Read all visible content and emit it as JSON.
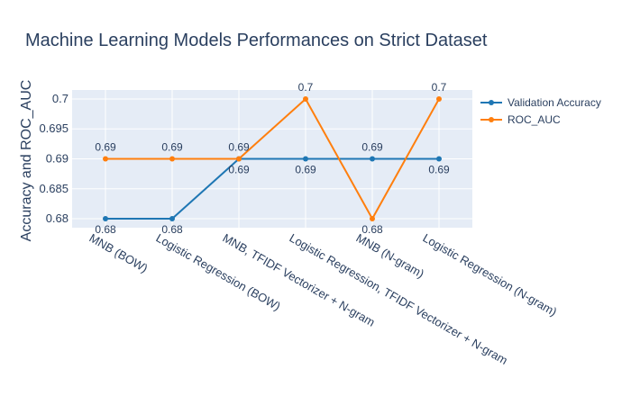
{
  "chart_data": {
    "type": "line",
    "title": "Machine Learning Models Performances on Strict Dataset",
    "xlabel": "",
    "ylabel": "Accuracy and ROC_AUC",
    "ylim": [
      0.6785,
      0.7015
    ],
    "yticks": [
      0.68,
      0.685,
      0.69,
      0.695,
      0.7
    ],
    "ytick_labels": [
      "0.68",
      "0.685",
      "0.69",
      "0.695",
      "0.7"
    ],
    "categories": [
      "MNB (BOW)",
      "Logistic Regression (BOW)",
      "MNB, TFIDF Vectorizer + N-gram",
      "Logistic Regression, TFIDF Vectorizer + N-gram",
      "MNB (N-gram)",
      "Logistic Regression (N-gram)"
    ],
    "series": [
      {
        "name": "Validation Accuracy",
        "color": "#1f77b4",
        "values": [
          0.68,
          0.68,
          0.69,
          0.69,
          0.69,
          0.69
        ],
        "labels": [
          "0.68",
          "0.68",
          "0.69",
          "0.69",
          "0.69",
          "0.69"
        ]
      },
      {
        "name": "ROC_AUC",
        "color": "#ff7f0e",
        "values": [
          0.69,
          0.69,
          0.69,
          0.7,
          0.68,
          0.7
        ],
        "labels": [
          "0.69",
          "0.69",
          "0.69",
          "0.7",
          "0.68",
          "0.7"
        ]
      }
    ],
    "grid": true,
    "legend": "top-right",
    "plot_background": "#e5ecf6"
  }
}
